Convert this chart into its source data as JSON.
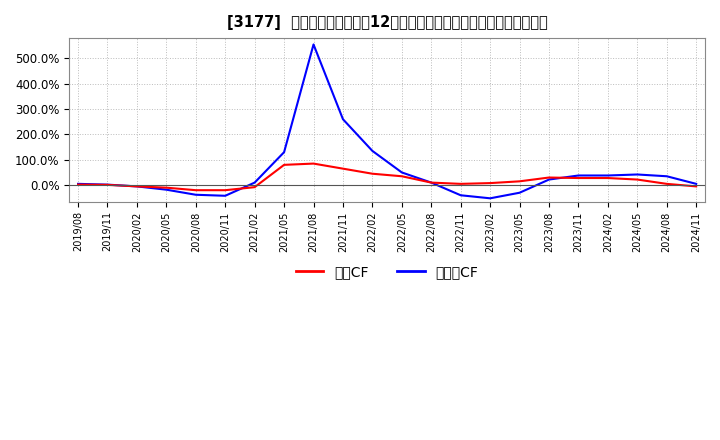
{
  "title": "[3177]  キャッシュフローの12か月移動合計の対前年同期増減率の推移",
  "legend_labels": [
    "営業CF",
    "フリーCF"
  ],
  "line_colors": [
    "#ff0000",
    "#0000ff"
  ],
  "background_color": "#ffffff",
  "grid_color": "#bbbbbb",
  "ylim": [
    -0.65,
    5.8
  ],
  "yticks": [
    0.0,
    1.0,
    2.0,
    3.0,
    4.0,
    5.0
  ],
  "ytick_labels": [
    "0.0%",
    "100.0%",
    "200.0%",
    "300.0%",
    "400.0%",
    "500.0%"
  ],
  "dates": [
    "2019/08",
    "2019/11",
    "2020/02",
    "2020/05",
    "2020/08",
    "2020/11",
    "2021/02",
    "2021/05",
    "2021/08",
    "2021/11",
    "2022/02",
    "2022/05",
    "2022/08",
    "2022/11",
    "2023/02",
    "2023/05",
    "2023/08",
    "2023/11",
    "2024/02",
    "2024/05",
    "2024/08",
    "2024/11"
  ],
  "operating_cf": [
    0.02,
    0.01,
    -0.05,
    -0.1,
    -0.2,
    -0.2,
    -0.08,
    0.8,
    0.85,
    0.65,
    0.45,
    0.35,
    0.1,
    0.05,
    0.08,
    0.15,
    0.3,
    0.28,
    0.28,
    0.22,
    0.05,
    -0.05
  ],
  "free_cf": [
    0.05,
    0.02,
    -0.05,
    -0.18,
    -0.38,
    -0.42,
    0.1,
    1.3,
    5.55,
    2.6,
    1.35,
    0.5,
    0.1,
    -0.4,
    -0.52,
    -0.3,
    0.22,
    0.38,
    0.38,
    0.42,
    0.35,
    0.05
  ]
}
